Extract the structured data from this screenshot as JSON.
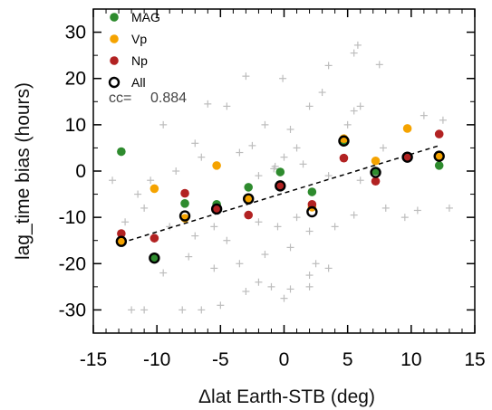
{
  "chart_data": {
    "type": "scatter",
    "xlabel": "Δlat Earth-STB (deg)",
    "ylabel": "lag_time bias (hours)",
    "xlim": [
      -15,
      15
    ],
    "ylim": [
      -35,
      35
    ],
    "xticks": [
      -15,
      -10,
      -5,
      0,
      5,
      10,
      15
    ],
    "yticks": [
      -30,
      -20,
      -10,
      0,
      10,
      20,
      30
    ],
    "grid": false,
    "legend_position": "top-left",
    "annotation": {
      "label": "cc=",
      "value": "0.884"
    },
    "series": [
      {
        "name": "MAG",
        "color": "#2e8b2e",
        "marker": "filled-circle",
        "points": [
          [
            -12.8,
            4.2
          ],
          [
            -10.2,
            -18.8
          ],
          [
            -7.8,
            -7.0
          ],
          [
            -5.3,
            -7.2
          ],
          [
            -2.8,
            -3.5
          ],
          [
            -0.3,
            -0.2
          ],
          [
            2.2,
            -4.5
          ],
          [
            4.7,
            6.3
          ],
          [
            7.2,
            0.0
          ],
          [
            9.7,
            3.0
          ],
          [
            12.2,
            1.2
          ]
        ]
      },
      {
        "name": "Vp",
        "color": "#f5a300",
        "marker": "filled-circle",
        "points": [
          [
            -12.8,
            -15.2
          ],
          [
            -10.2,
            -3.8
          ],
          [
            -7.8,
            -10.2
          ],
          [
            -5.3,
            1.2
          ],
          [
            -2.8,
            -6.0
          ],
          [
            -0.3,
            -3.2
          ],
          [
            2.2,
            -7.8
          ],
          [
            4.7,
            7.0
          ],
          [
            7.2,
            2.2
          ],
          [
            9.7,
            9.2
          ],
          [
            12.2,
            3.2
          ]
        ]
      },
      {
        "name": "Np",
        "color": "#b22222",
        "marker": "filled-circle",
        "points": [
          [
            -12.8,
            -13.5
          ],
          [
            -10.2,
            -14.5
          ],
          [
            -7.8,
            -4.8
          ],
          [
            -5.3,
            -8.2
          ],
          [
            -2.8,
            -9.5
          ],
          [
            -0.3,
            -3.2
          ],
          [
            2.2,
            -7.2
          ],
          [
            4.7,
            2.8
          ],
          [
            7.2,
            -2.2
          ],
          [
            9.7,
            2.8
          ],
          [
            12.2,
            8.0
          ]
        ]
      },
      {
        "name": "All",
        "color": "#000000",
        "marker": "open-circle",
        "points": [
          [
            -12.8,
            -15.2
          ],
          [
            -10.2,
            -18.8
          ],
          [
            -7.8,
            -9.7
          ],
          [
            -5.3,
            -8.2
          ],
          [
            -2.8,
            -6.0
          ],
          [
            -0.3,
            -3.2
          ],
          [
            2.2,
            -8.8
          ],
          [
            4.7,
            6.5
          ],
          [
            7.2,
            -0.3
          ],
          [
            9.7,
            3.0
          ],
          [
            12.2,
            3.2
          ]
        ]
      }
    ],
    "background_points": {
      "color": "#bdbdbd",
      "marker": "plus",
      "points": [
        [
          5.8,
          27.2
        ],
        [
          5.5,
          25.5
        ],
        [
          3.5,
          22.8
        ],
        [
          -3,
          20.5
        ],
        [
          -0.1,
          20.0
        ],
        [
          7.5,
          23.0
        ],
        [
          3.0,
          17.0
        ],
        [
          2.0,
          14.0
        ],
        [
          5.5,
          13.0
        ],
        [
          6.0,
          14.0
        ],
        [
          11.0,
          12.0
        ],
        [
          12.5,
          11.0
        ],
        [
          -6,
          14.5
        ],
        [
          -4.5,
          14.0
        ],
        [
          -9.5,
          10.0
        ],
        [
          -7.0,
          6.0
        ],
        [
          -1.5,
          10.0
        ],
        [
          0.5,
          9.0
        ],
        [
          1.0,
          5.0
        ],
        [
          -3.5,
          4.0
        ],
        [
          -2.5,
          5.5
        ],
        [
          -6.5,
          3.0
        ],
        [
          0.0,
          3.0
        ],
        [
          -0.7,
          1.0
        ],
        [
          -2.0,
          -1.0
        ],
        [
          -0.8,
          0.5
        ],
        [
          1.5,
          1.5
        ],
        [
          3.5,
          -1.0
        ],
        [
          6.0,
          -2.0
        ],
        [
          7.8,
          5.0
        ],
        [
          5.0,
          10.0
        ],
        [
          -8.5,
          0.0
        ],
        [
          -10.5,
          -2.0
        ],
        [
          -11.5,
          -5.0
        ],
        [
          -13.5,
          -2.0
        ],
        [
          -11.0,
          -8.0
        ],
        [
          -12.5,
          -11.0
        ],
        [
          -9.0,
          -12.0
        ],
        [
          -7.0,
          -14.0
        ],
        [
          -5.5,
          -12.0
        ],
        [
          -4.5,
          -15.0
        ],
        [
          -2.0,
          -11.0
        ],
        [
          -0.5,
          -12.0
        ],
        [
          1.0,
          -10.0
        ],
        [
          2.0,
          -13.0
        ],
        [
          4.0,
          -12.0
        ],
        [
          5.5,
          -9.5
        ],
        [
          8.0,
          -8.0
        ],
        [
          9.5,
          -10.0
        ],
        [
          10.5,
          -8.5
        ],
        [
          13.0,
          -8.0
        ],
        [
          -9.5,
          -22.0
        ],
        [
          -7.5,
          -18.5
        ],
        [
          -5.5,
          -21.0
        ],
        [
          -3.5,
          -20.0
        ],
        [
          -1.5,
          -18.0
        ],
        [
          0.5,
          -16.5
        ],
        [
          2.5,
          -20.0
        ],
        [
          3.5,
          -21.0
        ],
        [
          -3.0,
          -26.0
        ],
        [
          -2.0,
          -24.0
        ],
        [
          0.0,
          -27.5
        ],
        [
          2.0,
          -22.5
        ],
        [
          -5.0,
          -29.0
        ],
        [
          -6.5,
          -30.0
        ],
        [
          -8.0,
          -30.0
        ],
        [
          -11.0,
          -30.0
        ],
        [
          -12.0,
          -30.0
        ],
        [
          -1.0,
          -25.0
        ],
        [
          0.5,
          -25.5
        ],
        [
          2.0,
          -25.0
        ]
      ]
    },
    "fit_line": {
      "style": "dashed",
      "from": [
        -12.8,
        -15.5
      ],
      "to": [
        12.2,
        5.5
      ]
    }
  }
}
